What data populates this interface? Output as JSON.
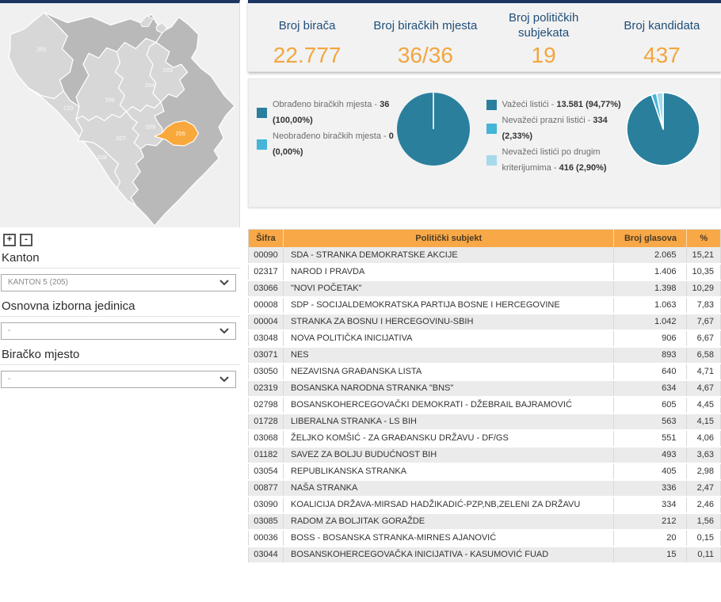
{
  "map_panel": {
    "zoom_in_label": "+",
    "zoom_out_label": "-",
    "regions": [
      {
        "code": "201"
      },
      {
        "code": "203"
      },
      {
        "code": "204"
      },
      {
        "code": "205"
      },
      {
        "code": "206"
      },
      {
        "code": "207"
      },
      {
        "code": "208"
      },
      {
        "code": "209"
      },
      {
        "code": "210"
      }
    ],
    "highlighted_region": "205",
    "colors": {
      "federation": "#d7d7d7",
      "rs": "#b9b9b9",
      "highlight": "#f9a83c",
      "border": "#ffffff"
    },
    "filters": [
      {
        "label": "Kanton",
        "value": "KANTON 5 (205)"
      },
      {
        "label": "Osnovna izborna jedinica",
        "value": "-"
      },
      {
        "label": "Biračko mjesto",
        "value": "-"
      }
    ]
  },
  "stats": [
    {
      "label": "Broj birača",
      "value": "22.777"
    },
    {
      "label": "Broj biračkih mjesta",
      "value": "36/36"
    },
    {
      "label": "Broj političkih subjekata",
      "value": "19"
    },
    {
      "label": "Broj kandidata",
      "value": "437"
    }
  ],
  "chart_data": [
    {
      "type": "pie",
      "slices": [
        {
          "label": "Obrađeno biračkih mjesta",
          "value": "36",
          "pct": "100,00%",
          "fraction": 1.0,
          "color": "#2a7f9d"
        },
        {
          "label": "Neobrađeno biračkih mjesta",
          "value": "0",
          "pct": "0,00%",
          "fraction": 0.0,
          "color": "#45b4d8"
        }
      ]
    },
    {
      "type": "pie",
      "slices": [
        {
          "label": "Važeći listići",
          "value": "13.581",
          "pct": "94,77%",
          "fraction": 0.9477,
          "color": "#2a7f9d"
        },
        {
          "label": "Nevažeći prazni listići",
          "value": "334",
          "pct": "2,33%",
          "fraction": 0.0233,
          "color": "#45b4d8"
        },
        {
          "label": "Nevažeći listići po drugim kriterijumima",
          "value": "416",
          "pct": "2,90%",
          "fraction": 0.029,
          "color": "#a6d9ec"
        }
      ]
    }
  ],
  "table": {
    "headers": [
      "Šifra",
      "Politički subjekt",
      "Broj glasova",
      "%"
    ],
    "rows": [
      {
        "code": "00090",
        "name": "SDA - STRANKA DEMOKRATSKE AKCIJE",
        "votes": "2.065",
        "pct": "15,21"
      },
      {
        "code": "02317",
        "name": "NAROD I PRAVDA",
        "votes": "1.406",
        "pct": "10,35"
      },
      {
        "code": "03066",
        "name": "\"NOVI POČETAK\"",
        "votes": "1.398",
        "pct": "10,29"
      },
      {
        "code": "00008",
        "name": "SDP - SOCIJALDEMOKRATSKA PARTIJA BOSNE I HERCEGOVINE",
        "votes": "1.063",
        "pct": "7,83"
      },
      {
        "code": "00004",
        "name": "STRANKA ZA BOSNU I HERCEGOVINU-SBIH",
        "votes": "1.042",
        "pct": "7,67"
      },
      {
        "code": "03048",
        "name": "NOVA POLITIČKA INICIJATIVA",
        "votes": "906",
        "pct": "6,67"
      },
      {
        "code": "03071",
        "name": "NES",
        "votes": "893",
        "pct": "6,58"
      },
      {
        "code": "03050",
        "name": "NEZAVISNA GRAĐANSKA LISTA",
        "votes": "640",
        "pct": "4,71"
      },
      {
        "code": "02319",
        "name": "BOSANSKA NARODNA STRANKA \"BNS\"",
        "votes": "634",
        "pct": "4,67"
      },
      {
        "code": "02798",
        "name": "BOSANSKOHERCEGOVAČKI DEMOKRATI - DŽEBRAIL BAJRAMOVIĆ",
        "votes": "605",
        "pct": "4,45"
      },
      {
        "code": "01728",
        "name": "LIBERALNA STRANKA - LS BIH",
        "votes": "563",
        "pct": "4,15"
      },
      {
        "code": "03068",
        "name": "ŽELJKO KOMŠIĆ - ZA GRAĐANSKU DRŽAVU - DF/GS",
        "votes": "551",
        "pct": "4,06"
      },
      {
        "code": "01182",
        "name": "SAVEZ ZA BOLJU BUDUĆNOST BIH",
        "votes": "493",
        "pct": "3,63"
      },
      {
        "code": "03054",
        "name": "REPUBLIKANSKA STRANKA",
        "votes": "405",
        "pct": "2,98"
      },
      {
        "code": "00877",
        "name": "NAŠA STRANKA",
        "votes": "336",
        "pct": "2,47"
      },
      {
        "code": "03090",
        "name": "KOALICIJA DRŽAVA-MIRSAD HADŽIKADIĆ-PZP,NB,ZELENI ZA DRŽAVU",
        "votes": "334",
        "pct": "2,46"
      },
      {
        "code": "03085",
        "name": "RADOM ZA BOLJITAK GORAŽDE",
        "votes": "212",
        "pct": "1,56"
      },
      {
        "code": "00036",
        "name": "BOSS - BOSANSKA STRANKA-MIRNES AJANOVIĆ",
        "votes": "20",
        "pct": "0,15"
      },
      {
        "code": "03044",
        "name": "BOSANSKOHERCEGOVAČKA INICIJATIVA - KASUMOVIĆ FUAD",
        "votes": "15",
        "pct": "0,11"
      }
    ]
  }
}
